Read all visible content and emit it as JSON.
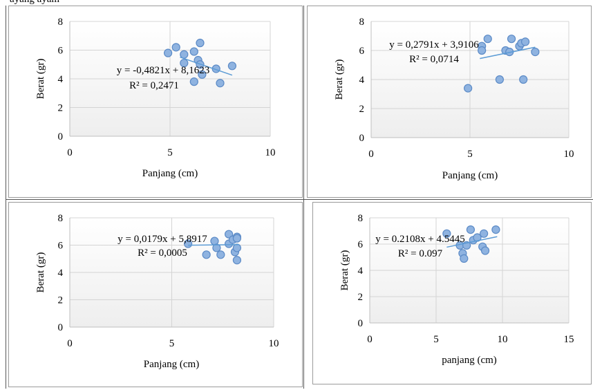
{
  "chart_data": [
    {
      "type": "scatter",
      "xlabel": "Panjang (cm)",
      "ylabel": "Berat (gr)",
      "xlim": [
        0,
        10
      ],
      "ylim": [
        0,
        8
      ],
      "xticks": [
        "0",
        "5",
        "10"
      ],
      "yticks": [
        "0",
        "2",
        "4",
        "6",
        "8"
      ],
      "equation": "y = -0,4821x + 8,1623",
      "r2": "R² = 0,2471",
      "points": [
        [
          4.9,
          5.8
        ],
        [
          5.3,
          6.2
        ],
        [
          5.7,
          5.7
        ],
        [
          5.7,
          5.1
        ],
        [
          6.2,
          5.9
        ],
        [
          6.4,
          5.3
        ],
        [
          6.5,
          6.5
        ],
        [
          6.5,
          5.0
        ],
        [
          6.6,
          4.3
        ],
        [
          6.2,
          3.8
        ],
        [
          7.3,
          4.7
        ],
        [
          7.5,
          3.7
        ],
        [
          8.1,
          4.9
        ]
      ],
      "trend": {
        "slope": -0.4821,
        "intercept": 8.1623,
        "x": [
          5.5,
          8.1
        ]
      },
      "marker_color": "#8fb3e0",
      "marker_stroke": "#5b8ac6",
      "line_color": "#5b9bd5"
    },
    {
      "type": "scatter",
      "xlabel": "Panjang (cm)",
      "ylabel": "Berat (gr)",
      "xlim": [
        0,
        10
      ],
      "ylim": [
        0,
        8
      ],
      "xticks": [
        "0",
        "5",
        "10"
      ],
      "yticks": [
        "0",
        "2",
        "4",
        "6",
        "8"
      ],
      "equation": "y = 0,2791x + 3,9106",
      "r2": "R² = 0,0714",
      "points": [
        [
          4.9,
          3.4
        ],
        [
          5.6,
          6.3
        ],
        [
          5.6,
          6.0
        ],
        [
          5.9,
          6.8
        ],
        [
          6.5,
          4.0
        ],
        [
          6.8,
          6.0
        ],
        [
          7.0,
          5.9
        ],
        [
          7.1,
          6.8
        ],
        [
          7.5,
          6.3
        ],
        [
          7.6,
          6.5
        ],
        [
          7.8,
          6.6
        ],
        [
          7.7,
          4.0
        ],
        [
          8.3,
          5.9
        ]
      ],
      "trend": {
        "slope": 0.2791,
        "intercept": 3.9106,
        "x": [
          5.5,
          8.3
        ]
      },
      "marker_color": "#8fb3e0",
      "marker_stroke": "#5b8ac6",
      "line_color": "#5b9bd5"
    },
    {
      "type": "scatter",
      "xlabel": "Panjang (cm)",
      "ylabel": "Berat (gr)",
      "xlim": [
        0,
        10
      ],
      "ylim": [
        0,
        8
      ],
      "xticks": [
        "0",
        "5",
        "10"
      ],
      "yticks": [
        "0",
        "2",
        "4",
        "6",
        "8"
      ],
      "equation": "y = 0,0179x + 5,8917",
      "r2": "R² = 0,0005",
      "points": [
        [
          5.8,
          6.1
        ],
        [
          6.7,
          5.3
        ],
        [
          7.1,
          6.3
        ],
        [
          7.2,
          5.8
        ],
        [
          7.4,
          5.3
        ],
        [
          7.8,
          6.1
        ],
        [
          7.8,
          6.8
        ],
        [
          8.0,
          6.4
        ],
        [
          8.1,
          5.5
        ],
        [
          8.2,
          6.6
        ],
        [
          8.2,
          6.5
        ],
        [
          8.2,
          5.8
        ],
        [
          8.2,
          4.9
        ]
      ],
      "trend": {
        "slope": 0.0179,
        "intercept": 5.8917,
        "x": [
          5.8,
          8.3
        ]
      },
      "marker_color": "#8fb3e0",
      "marker_stroke": "#5b8ac6",
      "line_color": "#5b9bd5"
    },
    {
      "type": "scatter",
      "xlabel": "panjang (cm)",
      "ylabel": "Berat (gr)",
      "xlim": [
        0,
        15
      ],
      "ylim": [
        0,
        8
      ],
      "xticks": [
        "0",
        "5",
        "10",
        "15"
      ],
      "yticks": [
        "0",
        "2",
        "4",
        "6",
        "8"
      ],
      "equation": "y = 0.2108x + 4.5445",
      "r2": "R² = 0.097",
      "points": [
        [
          5.8,
          6.8
        ],
        [
          6.8,
          5.9
        ],
        [
          7.0,
          5.3
        ],
        [
          7.1,
          4.9
        ],
        [
          7.3,
          5.9
        ],
        [
          7.6,
          7.1
        ],
        [
          7.8,
          6.3
        ],
        [
          8.1,
          6.5
        ],
        [
          8.6,
          6.8
        ],
        [
          8.5,
          5.8
        ],
        [
          8.7,
          5.5
        ],
        [
          9.5,
          7.1
        ]
      ],
      "trend": {
        "slope": 0.2108,
        "intercept": 4.5445,
        "x": [
          5.8,
          9.6
        ]
      },
      "marker_color": "#8fb3e0",
      "marker_stroke": "#5b8ac6",
      "line_color": "#5b9bd5"
    }
  ],
  "page": {
    "top_text": "ayang  ayam",
    "grid_line_color": "#555555",
    "axis_color": "#bfbfbf",
    "plot_bg_top": "#ffffff",
    "plot_bg_bottom": "#eeeeee"
  }
}
